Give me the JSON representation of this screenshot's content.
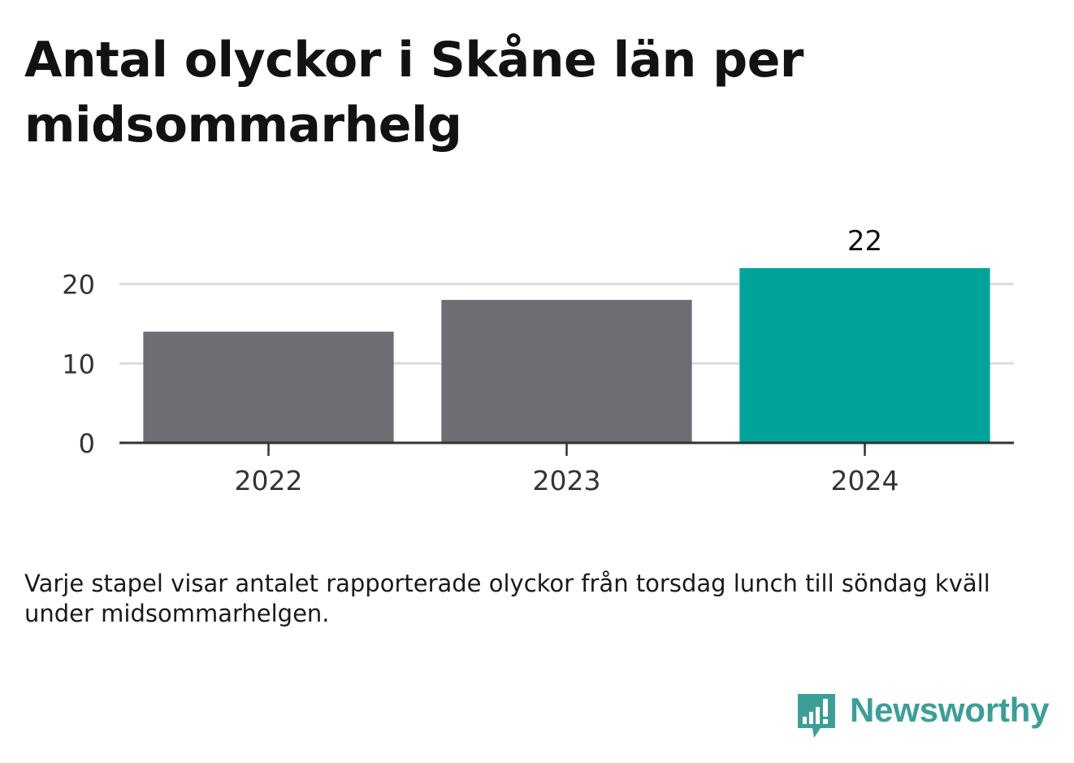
{
  "title": "Antal olyckor i Skåne län per midsommarhelg",
  "caption": "Varje stapel visar antalet rapporterade olyckor från torsdag lunch till söndag kväll under midsommarhelgen.",
  "brand": {
    "name": "Newsworthy",
    "icon": "newsworthy-chart-bubble-icon",
    "color": "#3d9e98"
  },
  "colors": {
    "bar_default": "#6e6d73",
    "bar_highlight": "#00a39a",
    "grid": "#dcdcdc",
    "axis": "#333333",
    "text": "#333333"
  },
  "chart_data": {
    "type": "bar",
    "title": "Antal olyckor i Skåne län per midsommarhelg",
    "xlabel": "",
    "ylabel": "",
    "categories": [
      "2022",
      "2023",
      "2024"
    ],
    "values": [
      14,
      18,
      22
    ],
    "highlight": [
      false,
      false,
      true
    ],
    "data_labels": [
      "",
      "",
      "22"
    ],
    "yticks": [
      0,
      10,
      20
    ],
    "ylim": [
      0,
      22
    ],
    "grid": true,
    "legend": "none"
  }
}
